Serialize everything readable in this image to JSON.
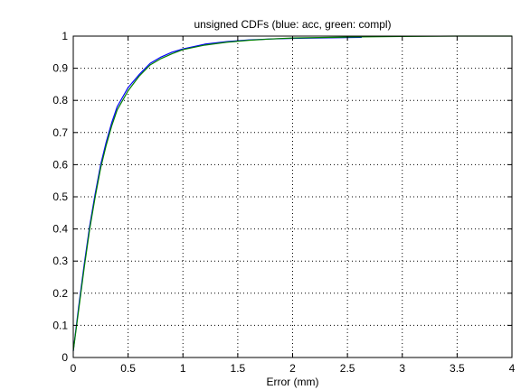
{
  "chart_data": {
    "type": "line",
    "title": "unsigned CDFs (blue: acc, green: compl)",
    "xlabel": "Error (mm)",
    "ylabel": "",
    "xlim": [
      0,
      4
    ],
    "ylim": [
      0,
      1
    ],
    "grid": true,
    "grid_style": "dotted",
    "x_ticks": [
      0,
      0.5,
      1,
      1.5,
      2,
      2.5,
      3,
      3.5,
      4
    ],
    "x_tick_labels": [
      "0",
      "0.5",
      "1",
      "1.5",
      "2",
      "2.5",
      "3",
      "3.5",
      "4"
    ],
    "y_ticks": [
      0,
      0.1,
      0.2,
      0.3,
      0.4,
      0.5,
      0.6,
      0.7,
      0.8,
      0.9,
      1
    ],
    "y_tick_labels": [
      "0",
      "0.1",
      "0.2",
      "0.3",
      "0.4",
      "0.5",
      "0.6",
      "0.7",
      "0.8",
      "0.9",
      "1"
    ],
    "series": [
      {
        "color": "#0000ff",
        "x": [
          0,
          0.05,
          0.1,
          0.15,
          0.2,
          0.25,
          0.3,
          0.35,
          0.4,
          0.45,
          0.5,
          0.6,
          0.7,
          0.8,
          0.9,
          1.0,
          1.2,
          1.4,
          1.6,
          1.8,
          2.0,
          2.2,
          2.4,
          2.63
        ],
        "y": [
          0.02,
          0.16,
          0.29,
          0.41,
          0.51,
          0.6,
          0.67,
          0.73,
          0.78,
          0.81,
          0.84,
          0.88,
          0.915,
          0.935,
          0.95,
          0.96,
          0.975,
          0.983,
          0.988,
          0.991,
          0.993,
          0.994,
          0.995,
          0.996
        ]
      },
      {
        "color": "#008000",
        "x": [
          0,
          0.05,
          0.1,
          0.15,
          0.2,
          0.25,
          0.3,
          0.35,
          0.4,
          0.45,
          0.5,
          0.6,
          0.7,
          0.8,
          0.9,
          1.0,
          1.2,
          1.4,
          1.6,
          1.8,
          2.0,
          2.5,
          3.0,
          3.5,
          4.0
        ],
        "y": [
          0.02,
          0.15,
          0.28,
          0.4,
          0.5,
          0.59,
          0.66,
          0.72,
          0.77,
          0.8,
          0.83,
          0.875,
          0.91,
          0.93,
          0.945,
          0.958,
          0.972,
          0.981,
          0.987,
          0.991,
          0.994,
          0.997,
          0.999,
          1.0,
          1.0
        ]
      }
    ]
  }
}
